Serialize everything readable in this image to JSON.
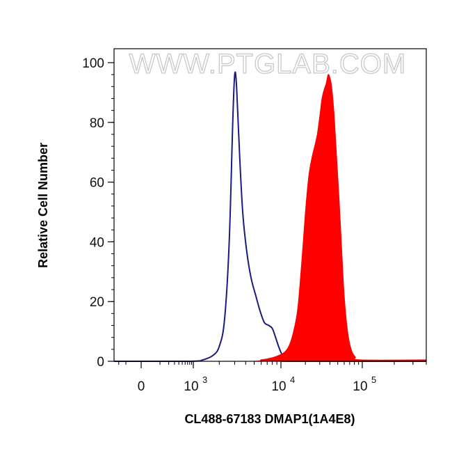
{
  "chart_data": {
    "type": "area",
    "title": "",
    "xlabel": "CL488-67183 DMAP1(1A4E8)",
    "ylabel": "Relative Cell Number",
    "watermark": "WWW.PTGLAB.COM",
    "x_scale": "biexponential",
    "xlim": [
      -300,
      400000
    ],
    "ylim": [
      0,
      100
    ],
    "x_ticks": [
      {
        "value": 0,
        "base": "0",
        "exp": ""
      },
      {
        "value": 1000,
        "base": "10",
        "exp": "3"
      },
      {
        "value": 10000,
        "base": "10",
        "exp": "4"
      },
      {
        "value": 100000,
        "base": "10",
        "exp": "5"
      }
    ],
    "y_ticks": [
      0,
      20,
      40,
      60,
      80,
      100
    ],
    "grid": false,
    "legend": "none",
    "series": [
      {
        "style": "outline",
        "color": "#1a1a80",
        "x": [
          -300,
          800,
          1300,
          1700,
          2000,
          2300,
          2600,
          2850,
          3000,
          3150,
          3400,
          3700,
          4100,
          4600,
          5200,
          5800,
          6500,
          7300,
          8000,
          8700,
          9400,
          10200,
          11000,
          12000,
          14000,
          400000
        ],
        "y": [
          0,
          0,
          0.5,
          2,
          5,
          14,
          40,
          80,
          96,
          92,
          70,
          50,
          37,
          28,
          22,
          17,
          13,
          12,
          11,
          8,
          5,
          2.5,
          1,
          0.3,
          0,
          0
        ]
      },
      {
        "style": "filled",
        "color": "#ff0000",
        "x": [
          -300,
          4000,
          6000,
          8000,
          9500,
          11000,
          12500,
          14000,
          16000,
          18000,
          20000,
          22000,
          24000,
          26000,
          28000,
          30000,
          32000,
          34000,
          36000,
          38000,
          40000,
          42000,
          45000,
          48000,
          52000,
          56000,
          60000,
          66000,
          73000,
          82000,
          95000,
          400000
        ],
        "y": [
          0,
          0,
          0.5,
          1.2,
          2,
          3,
          5,
          9,
          17,
          33,
          50,
          62,
          68,
          72,
          76,
          82,
          88,
          91,
          93,
          96,
          95,
          92,
          83,
          70,
          54,
          37,
          22,
          10,
          4,
          1.5,
          0.5,
          0.5
        ]
      }
    ]
  }
}
